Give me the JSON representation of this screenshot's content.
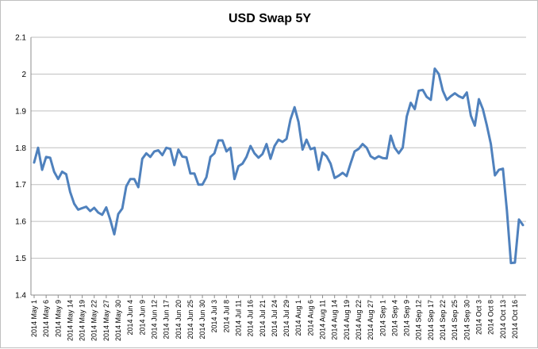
{
  "chart_data": {
    "type": "line",
    "title": "USD Swap 5Y",
    "xlabel": "",
    "ylabel": "",
    "ylim": [
      1.4,
      2.1
    ],
    "yticks": [
      "1.4",
      "1.5",
      "1.6",
      "1.7",
      "1.8",
      "1.9",
      "2",
      "2.1"
    ],
    "grid": "horizontal",
    "legend": "none",
    "series_color": "#4f81bd",
    "xtick_labels": [
      "2014 May 1",
      "2014 May 6",
      "2014 May 9",
      "2014 May 14",
      "2014 May 19",
      "2014 May 22",
      "2014 May 27",
      "2014 May 30",
      "2014 Jun 4",
      "2014 Jun 9",
      "2014 Jun 12",
      "2014 Jun 17",
      "2014 Jun 20",
      "2014 Jun 25",
      "2014 Jun 30",
      "2014 Jul 3",
      "2014 Jul 8",
      "2014 Jul 11",
      "2014 Jul 16",
      "2014 Jul 21",
      "2014 Jul 24",
      "2014 Jul 29",
      "2014 Aug 1",
      "2014 Aug 6",
      "2014 Aug 11",
      "2014 Aug 14",
      "2014 Aug 19",
      "2014 Aug 22",
      "2014 Aug 27",
      "2014 Sep 1",
      "2014 Sep 4",
      "2014 Sep 9",
      "2014 Sep 12",
      "2014 Sep 17",
      "2014 Sep 22",
      "2014 Sep 25",
      "2014 Sep 30",
      "2014 Oct 3",
      "2014 Oct 8",
      "2014 Oct 13",
      "2014 Oct 16"
    ],
    "tick_every": 3,
    "values": [
      1.76,
      1.8,
      1.74,
      1.775,
      1.773,
      1.735,
      1.715,
      1.735,
      1.728,
      1.68,
      1.648,
      1.632,
      1.636,
      1.64,
      1.628,
      1.637,
      1.624,
      1.618,
      1.638,
      1.605,
      1.565,
      1.62,
      1.635,
      1.695,
      1.715,
      1.715,
      1.693,
      1.77,
      1.785,
      1.775,
      1.79,
      1.793,
      1.78,
      1.8,
      1.797,
      1.753,
      1.795,
      1.776,
      1.774,
      1.73,
      1.73,
      1.7,
      1.7,
      1.72,
      1.775,
      1.785,
      1.82,
      1.82,
      1.79,
      1.8,
      1.715,
      1.75,
      1.757,
      1.775,
      1.805,
      1.785,
      1.773,
      1.783,
      1.81,
      1.77,
      1.805,
      1.822,
      1.816,
      1.824,
      1.877,
      1.91,
      1.87,
      1.795,
      1.822,
      1.796,
      1.8,
      1.74,
      1.787,
      1.777,
      1.757,
      1.718,
      1.724,
      1.732,
      1.723,
      1.758,
      1.79,
      1.797,
      1.81,
      1.8,
      1.777,
      1.77,
      1.777,
      1.772,
      1.771,
      1.833,
      1.8,
      1.785,
      1.8,
      1.885,
      1.922,
      1.905,
      1.955,
      1.957,
      1.938,
      1.93,
      2.015,
      2.0,
      1.955,
      1.93,
      1.94,
      1.948,
      1.94,
      1.935,
      1.95,
      1.887,
      1.86,
      1.932,
      1.905,
      1.86,
      1.81,
      1.725,
      1.74,
      1.743,
      1.63,
      1.487,
      1.488,
      1.605,
      1.59
    ]
  }
}
